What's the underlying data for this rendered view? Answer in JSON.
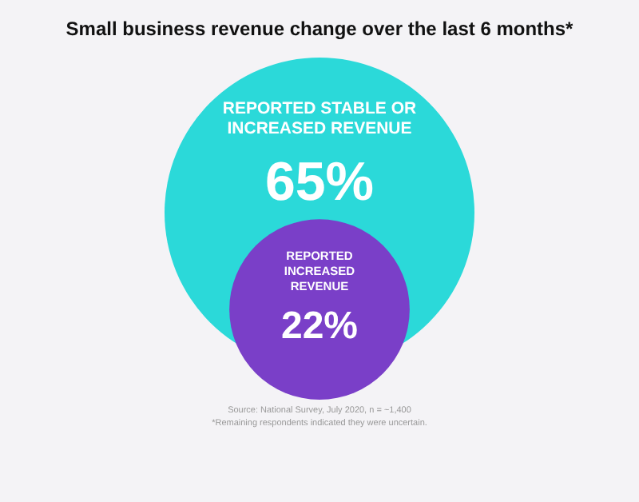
{
  "chart_data": {
    "type": "other",
    "title": "Small business revenue change over the last 6 months*",
    "categories": [
      "REPORTED STABLE OR INCREASED REVENUE",
      "REPORTED INCREASED REVENUE"
    ],
    "values": [
      65,
      22
    ],
    "value_labels": [
      "65%",
      "22%"
    ],
    "colors": [
      "#2bd9d9",
      "#7a3fc8"
    ],
    "annotations": [
      "Source: National Survey, July 2020, n = ~1,400",
      "*Remaining respondents indicated they were uncertain."
    ]
  }
}
